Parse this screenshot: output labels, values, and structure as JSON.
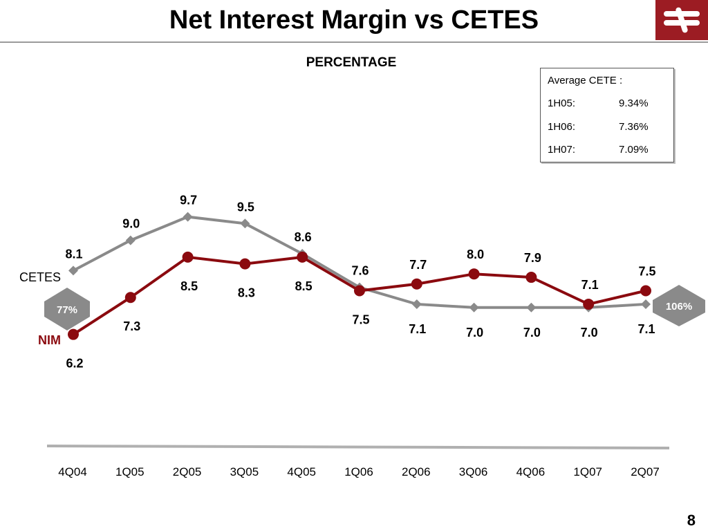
{
  "header": {
    "title": "Net Interest Margin vs CETES",
    "subtitle": "PERCENTAGE"
  },
  "cete_box": {
    "heading": "Average CETE :",
    "rows": [
      {
        "period": "1H05:",
        "value": "9.34%"
      },
      {
        "period": "1H06:",
        "value": "7.36%"
      },
      {
        "period": "1H07:",
        "value": "7.09%"
      }
    ]
  },
  "badges": {
    "left": "77%",
    "right": "106%"
  },
  "page_number": "8",
  "colors": {
    "cetes": "#8a8a8a",
    "nim": "#8b0a0f",
    "brand": "#9c1c23"
  },
  "chart_data": {
    "type": "line",
    "title": "Net Interest Margin vs CETES",
    "subtitle": "PERCENTAGE",
    "categories": [
      "4Q04",
      "1Q05",
      "2Q05",
      "3Q05",
      "4Q05",
      "1Q06",
      "2Q06",
      "3Q06",
      "4Q06",
      "1Q07",
      "2Q07"
    ],
    "series": [
      {
        "name": "CETES",
        "values": [
          8.1,
          9.0,
          9.7,
          9.5,
          8.6,
          7.6,
          7.1,
          7.0,
          7.0,
          7.0,
          7.1
        ]
      },
      {
        "name": "NIM",
        "values": [
          6.2,
          7.3,
          8.5,
          8.3,
          8.5,
          7.5,
          7.7,
          8.0,
          7.9,
          7.1,
          7.5
        ]
      }
    ],
    "legend": "left-labels",
    "grid": false
  }
}
